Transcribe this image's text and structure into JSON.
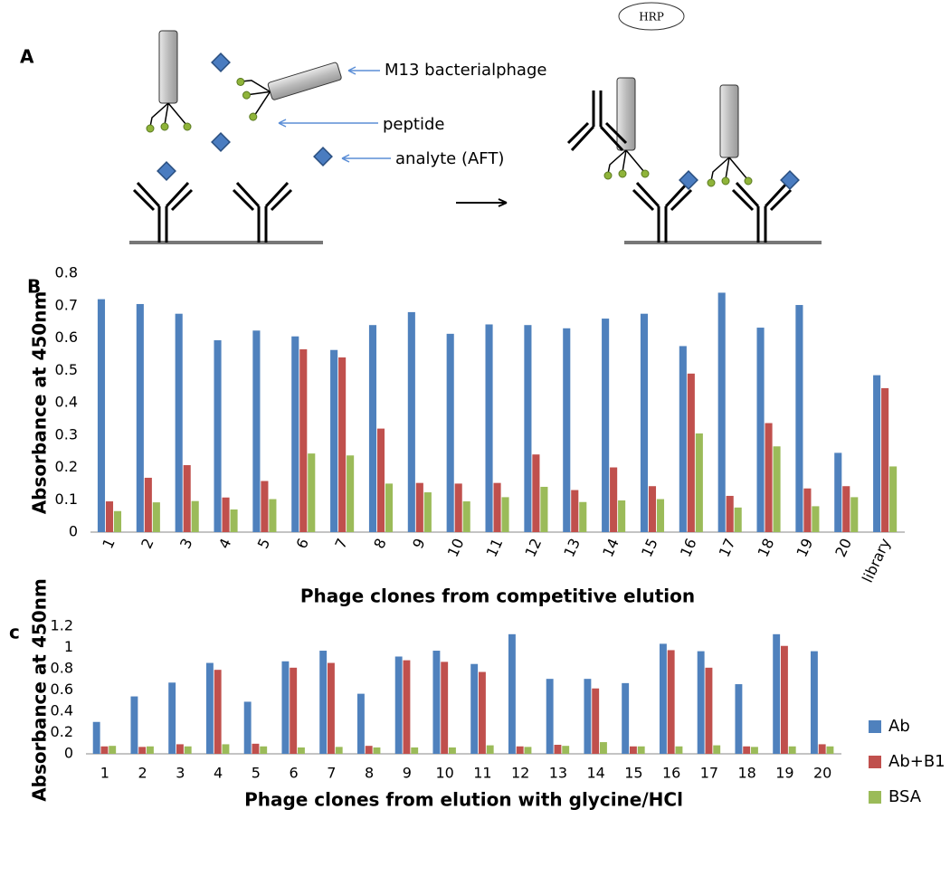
{
  "diagram": {
    "panel": "A",
    "hrp": "HRP",
    "labels": [
      "M13 bacterialphage",
      "peptide",
      "analyte (AFT)"
    ]
  },
  "chart_data": [
    {
      "type": "bar",
      "panel": "B",
      "y_label": "Absorbance at 450nm",
      "x_label": "Phage clones from competitive elution",
      "categories": [
        "1",
        "2",
        "3",
        "4",
        "5",
        "6",
        "7",
        "8",
        "9",
        "10",
        "11",
        "12",
        "13",
        "14",
        "15",
        "16",
        "17",
        "18",
        "19",
        "20",
        "library"
      ],
      "series": [
        {
          "color": "#4f81bd",
          "values": [
            0.72,
            0.705,
            0.675,
            0.593,
            0.623,
            0.605,
            0.563,
            0.64,
            0.68,
            0.613,
            0.642,
            0.64,
            0.63,
            0.66,
            0.675,
            0.575,
            0.74,
            0.632,
            0.702,
            0.245,
            0.485
          ]
        },
        {
          "color": "#c0504d",
          "values": [
            0.095,
            0.168,
            0.207,
            0.107,
            0.158,
            0.565,
            0.54,
            0.32,
            0.152,
            0.15,
            0.152,
            0.24,
            0.13,
            0.2,
            0.142,
            0.49,
            0.112,
            0.337,
            0.135,
            0.142,
            0.445
          ]
        },
        {
          "color": "#9bbb59",
          "values": [
            0.065,
            0.092,
            0.096,
            0.07,
            0.102,
            0.243,
            0.237,
            0.15,
            0.123,
            0.095,
            0.108,
            0.14,
            0.093,
            0.098,
            0.102,
            0.305,
            0.076,
            0.265,
            0.08,
            0.108,
            0.203
          ]
        }
      ],
      "ylim": [
        0,
        0.8
      ],
      "yticks": [
        0,
        0.1,
        0.2,
        0.3,
        0.4,
        0.5,
        0.6,
        0.7,
        0.8
      ],
      "rotate_x_labels": true
    },
    {
      "type": "bar",
      "panel": "c",
      "y_label": "Absorbance at 450nm",
      "x_label": "Phage clones from elution with glycine/HCl",
      "categories": [
        "1",
        "2",
        "3",
        "4",
        "5",
        "6",
        "7",
        "8",
        "9",
        "10",
        "11",
        "12",
        "13",
        "14",
        "15",
        "16",
        "17",
        "18",
        "19",
        "20"
      ],
      "series": [
        {
          "name": "Ab",
          "color": "#4f81bd",
          "values": [
            0.3,
            0.54,
            0.67,
            0.855,
            0.49,
            0.87,
            0.97,
            0.565,
            0.915,
            0.97,
            0.845,
            1.125,
            0.705,
            0.705,
            0.665,
            1.035,
            0.965,
            0.655,
            1.125,
            0.965
          ]
        },
        {
          "name": "Ab+B1",
          "color": "#c0504d",
          "values": [
            0.07,
            0.065,
            0.09,
            0.79,
            0.095,
            0.81,
            0.855,
            0.075,
            0.88,
            0.865,
            0.77,
            0.07,
            0.085,
            0.615,
            0.07,
            0.975,
            0.81,
            0.07,
            1.015,
            0.09
          ]
        },
        {
          "name": "BSA",
          "color": "#9bbb59",
          "values": [
            0.075,
            0.07,
            0.07,
            0.09,
            0.07,
            0.06,
            0.065,
            0.06,
            0.06,
            0.06,
            0.08,
            0.065,
            0.075,
            0.11,
            0.07,
            0.07,
            0.08,
            0.065,
            0.07,
            0.07
          ]
        }
      ],
      "ylim": [
        0,
        1.2
      ],
      "yticks": [
        0,
        0.2,
        0.4,
        0.6,
        0.8,
        1,
        1.2
      ],
      "legend": "right"
    }
  ]
}
